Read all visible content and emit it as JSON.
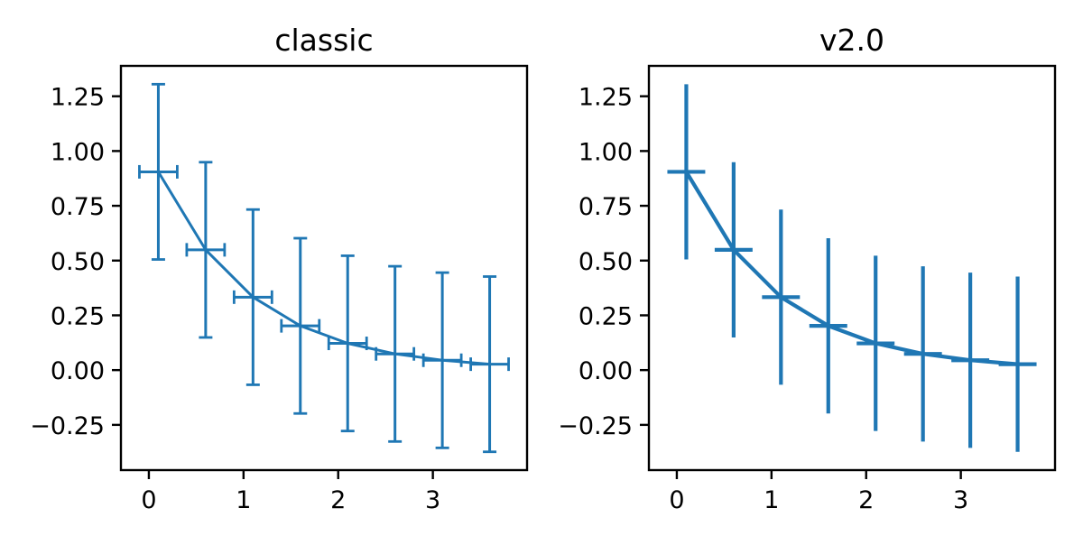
{
  "figure": {
    "background_color": "#ffffff",
    "axes_color": "#000000",
    "line_color": "#1f77b4"
  },
  "chart_data": {
    "type": "line",
    "variant": "errorbar",
    "title": "",
    "xlabel": "",
    "ylabel": "",
    "grid": false,
    "legend": null,
    "x": [
      0.1,
      0.6,
      1.1,
      1.6,
      2.1,
      2.6,
      3.1,
      3.6
    ],
    "xlim": [
      -0.295,
      3.995
    ],
    "ylim": [
      -0.4565,
      1.3887
    ],
    "xticks": {
      "values": [
        0,
        1,
        2,
        3
      ],
      "labels": [
        "0",
        "1",
        "2",
        "3"
      ]
    },
    "yticks": {
      "values": [
        -0.25,
        0.0,
        0.25,
        0.5,
        0.75,
        1.0,
        1.25
      ],
      "labels": [
        "−0.25",
        "0.00",
        "0.25",
        "0.50",
        "0.75",
        "1.00",
        "1.25"
      ]
    },
    "series": [
      {
        "name": "classic",
        "title": "classic",
        "values": [
          0.905,
          0.549,
          0.333,
          0.202,
          0.122,
          0.074,
          0.045,
          0.027
        ],
        "xerr": 0.2,
        "yerr": 0.4,
        "color": "#1f77b4",
        "line_width": 3,
        "cap_half_length": 7.5,
        "cap_thickness": 2.8,
        "has_caps": true
      },
      {
        "name": "v2.0",
        "title": "v2.0",
        "values": [
          0.905,
          0.549,
          0.333,
          0.202,
          0.122,
          0.074,
          0.045,
          0.027
        ],
        "xerr": 0.2,
        "yerr": 0.4,
        "color": "#1f77b4",
        "line_width": 4.2,
        "cap_half_length": 0,
        "cap_thickness": 0,
        "has_caps": false
      }
    ]
  }
}
